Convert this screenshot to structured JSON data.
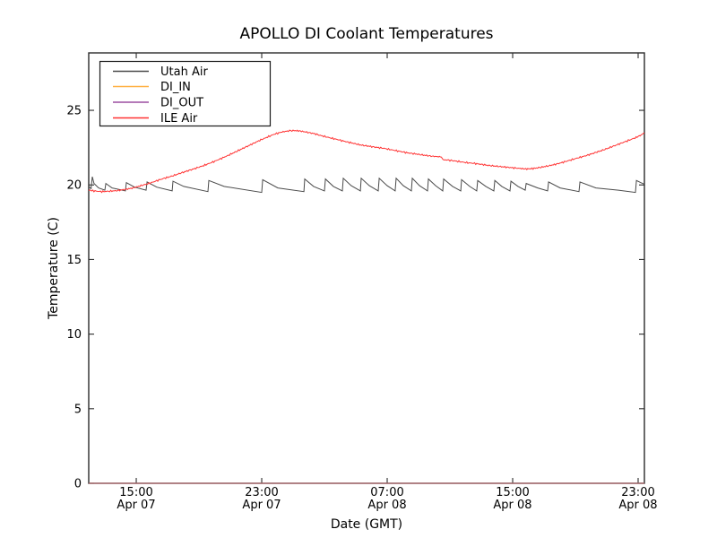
{
  "figure": {
    "title": "APOLLO DI Coolant Temperatures",
    "xlabel": "Date (GMT)",
    "ylabel": "Temperature (C)"
  },
  "colors": {
    "background": "#ffffff",
    "frame": "#2b2b2b",
    "tick_text": "#000000",
    "legend_border": "#1a1a1a",
    "utah_air": "#4a4a4a",
    "di_in": "#ffb042",
    "di_out": "#9c4fa0",
    "ile_air": "#ff3333"
  },
  "chart_data": {
    "type": "line",
    "title": "APOLLO DI Coolant Temperatures",
    "xlabel": "Date (GMT)",
    "ylabel": "Temperature (C)",
    "grid": false,
    "legend_position": "upper left",
    "x_unit": "hours since Apr 07 00:00 GMT",
    "xlim": [
      11.97,
      47.4
    ],
    "ylim": [
      0,
      28.85
    ],
    "y_ticks": [
      0,
      5,
      10,
      15,
      20,
      25
    ],
    "x_ticks": [
      {
        "hours": 15,
        "time": "15:00",
        "date": "Apr 07"
      },
      {
        "hours": 23,
        "time": "23:00",
        "date": "Apr 07"
      },
      {
        "hours": 31,
        "time": "07:00",
        "date": "Apr 08"
      },
      {
        "hours": 39,
        "time": "15:00",
        "date": "Apr 08"
      },
      {
        "hours": 47,
        "time": "23:00",
        "date": "Apr 08"
      }
    ],
    "series": [
      {
        "name": "Utah Air",
        "color": "#4a4a4a",
        "width": 1,
        "points": [
          [
            11.97,
            19.9
          ],
          [
            12.12,
            19.75
          ],
          [
            12.2,
            20.55
          ],
          [
            12.31,
            20.1
          ],
          [
            12.6,
            19.8
          ],
          [
            13.0,
            19.65
          ],
          [
            13.06,
            20.1
          ],
          [
            13.46,
            19.8
          ],
          [
            14.31,
            19.6
          ],
          [
            14.37,
            20.15
          ],
          [
            14.89,
            19.85
          ],
          [
            15.63,
            19.65
          ],
          [
            15.69,
            20.2
          ],
          [
            16.31,
            19.85
          ],
          [
            17.29,
            19.6
          ],
          [
            17.34,
            20.25
          ],
          [
            18.03,
            19.9
          ],
          [
            19.57,
            19.55
          ],
          [
            19.63,
            20.3
          ],
          [
            20.6,
            19.9
          ],
          [
            23.0,
            19.5
          ],
          [
            23.06,
            20.35
          ],
          [
            24.03,
            19.8
          ],
          [
            25.69,
            19.55
          ],
          [
            25.74,
            20.4
          ],
          [
            26.31,
            19.9
          ],
          [
            27.0,
            19.6
          ],
          [
            27.06,
            20.4
          ],
          [
            27.57,
            19.9
          ],
          [
            28.14,
            19.6
          ],
          [
            28.2,
            20.45
          ],
          [
            28.71,
            19.95
          ],
          [
            29.29,
            19.6
          ],
          [
            29.34,
            20.45
          ],
          [
            29.86,
            19.95
          ],
          [
            30.43,
            19.6
          ],
          [
            30.49,
            20.45
          ],
          [
            31.0,
            19.95
          ],
          [
            31.51,
            19.6
          ],
          [
            31.57,
            20.45
          ],
          [
            32.03,
            19.95
          ],
          [
            32.54,
            19.6
          ],
          [
            32.6,
            20.45
          ],
          [
            33.06,
            19.95
          ],
          [
            33.57,
            19.6
          ],
          [
            33.63,
            20.4
          ],
          [
            34.09,
            19.95
          ],
          [
            34.54,
            19.6
          ],
          [
            34.6,
            20.4
          ],
          [
            35.17,
            19.9
          ],
          [
            35.69,
            19.6
          ],
          [
            35.74,
            20.35
          ],
          [
            36.26,
            19.9
          ],
          [
            36.71,
            19.6
          ],
          [
            36.77,
            20.3
          ],
          [
            37.29,
            19.9
          ],
          [
            37.8,
            19.6
          ],
          [
            37.86,
            20.3
          ],
          [
            38.31,
            19.9
          ],
          [
            38.83,
            19.6
          ],
          [
            38.89,
            20.25
          ],
          [
            39.34,
            19.9
          ],
          [
            39.8,
            19.65
          ],
          [
            39.86,
            20.1
          ],
          [
            40.6,
            19.8
          ],
          [
            41.23,
            19.6
          ],
          [
            41.29,
            20.2
          ],
          [
            42.03,
            19.8
          ],
          [
            43.23,
            19.55
          ],
          [
            43.29,
            20.2
          ],
          [
            44.31,
            19.8
          ],
          [
            45.74,
            19.65
          ],
          [
            46.83,
            19.5
          ],
          [
            46.89,
            20.3
          ],
          [
            47.17,
            20.15
          ],
          [
            47.4,
            20.05
          ]
        ]
      },
      {
        "name": "DI_IN",
        "color": "#ffb042",
        "width": 1.2,
        "opacity": 0.7,
        "points": [
          [
            11.97,
            0
          ],
          [
            47.4,
            0
          ]
        ]
      },
      {
        "name": "DI_OUT",
        "color": "#9c4fa0",
        "width": 1.2,
        "opacity": 0.55,
        "points": [
          [
            11.97,
            0
          ],
          [
            47.4,
            0
          ]
        ]
      },
      {
        "name": "ILE Air",
        "color": "#ff3333",
        "width": 1,
        "noise_amplitude_c": 0.035,
        "points": [
          [
            11.97,
            19.65
          ],
          [
            12.3,
            19.6
          ],
          [
            12.8,
            19.55
          ],
          [
            13.3,
            19.58
          ],
          [
            13.8,
            19.62
          ],
          [
            14.3,
            19.7
          ],
          [
            14.8,
            19.8
          ],
          [
            15.3,
            19.95
          ],
          [
            15.8,
            20.1
          ],
          [
            16.3,
            20.28
          ],
          [
            16.8,
            20.45
          ],
          [
            17.3,
            20.6
          ],
          [
            17.8,
            20.78
          ],
          [
            18.3,
            20.95
          ],
          [
            18.8,
            21.12
          ],
          [
            19.3,
            21.3
          ],
          [
            19.8,
            21.5
          ],
          [
            20.3,
            21.72
          ],
          [
            20.8,
            21.95
          ],
          [
            21.3,
            22.2
          ],
          [
            21.8,
            22.45
          ],
          [
            22.3,
            22.7
          ],
          [
            22.8,
            22.95
          ],
          [
            23.3,
            23.18
          ],
          [
            23.8,
            23.4
          ],
          [
            24.3,
            23.55
          ],
          [
            24.7,
            23.62
          ],
          [
            25.0,
            23.65
          ],
          [
            25.4,
            23.62
          ],
          [
            25.8,
            23.55
          ],
          [
            26.3,
            23.45
          ],
          [
            26.8,
            23.3
          ],
          [
            27.3,
            23.17
          ],
          [
            27.8,
            23.05
          ],
          [
            28.3,
            22.92
          ],
          [
            28.8,
            22.8
          ],
          [
            29.3,
            22.68
          ],
          [
            29.8,
            22.6
          ],
          [
            30.3,
            22.52
          ],
          [
            30.8,
            22.45
          ],
          [
            31.3,
            22.35
          ],
          [
            31.8,
            22.25
          ],
          [
            32.3,
            22.15
          ],
          [
            32.8,
            22.08
          ],
          [
            33.3,
            22.0
          ],
          [
            33.8,
            21.93
          ],
          [
            34.2,
            21.9
          ],
          [
            34.45,
            21.88
          ],
          [
            34.55,
            21.7
          ],
          [
            35.0,
            21.65
          ],
          [
            35.5,
            21.58
          ],
          [
            36.0,
            21.5
          ],
          [
            36.5,
            21.45
          ],
          [
            37.0,
            21.38
          ],
          [
            37.5,
            21.3
          ],
          [
            38.0,
            21.25
          ],
          [
            38.5,
            21.2
          ],
          [
            39.0,
            21.15
          ],
          [
            39.5,
            21.1
          ],
          [
            39.9,
            21.07
          ],
          [
            40.3,
            21.1
          ],
          [
            40.8,
            21.18
          ],
          [
            41.3,
            21.28
          ],
          [
            41.8,
            21.4
          ],
          [
            42.3,
            21.55
          ],
          [
            42.8,
            21.7
          ],
          [
            43.3,
            21.85
          ],
          [
            43.8,
            22.0
          ],
          [
            44.3,
            22.18
          ],
          [
            44.8,
            22.35
          ],
          [
            45.3,
            22.55
          ],
          [
            45.8,
            22.75
          ],
          [
            46.3,
            22.95
          ],
          [
            46.8,
            23.15
          ],
          [
            47.2,
            23.35
          ],
          [
            47.4,
            23.5
          ]
        ]
      }
    ]
  }
}
